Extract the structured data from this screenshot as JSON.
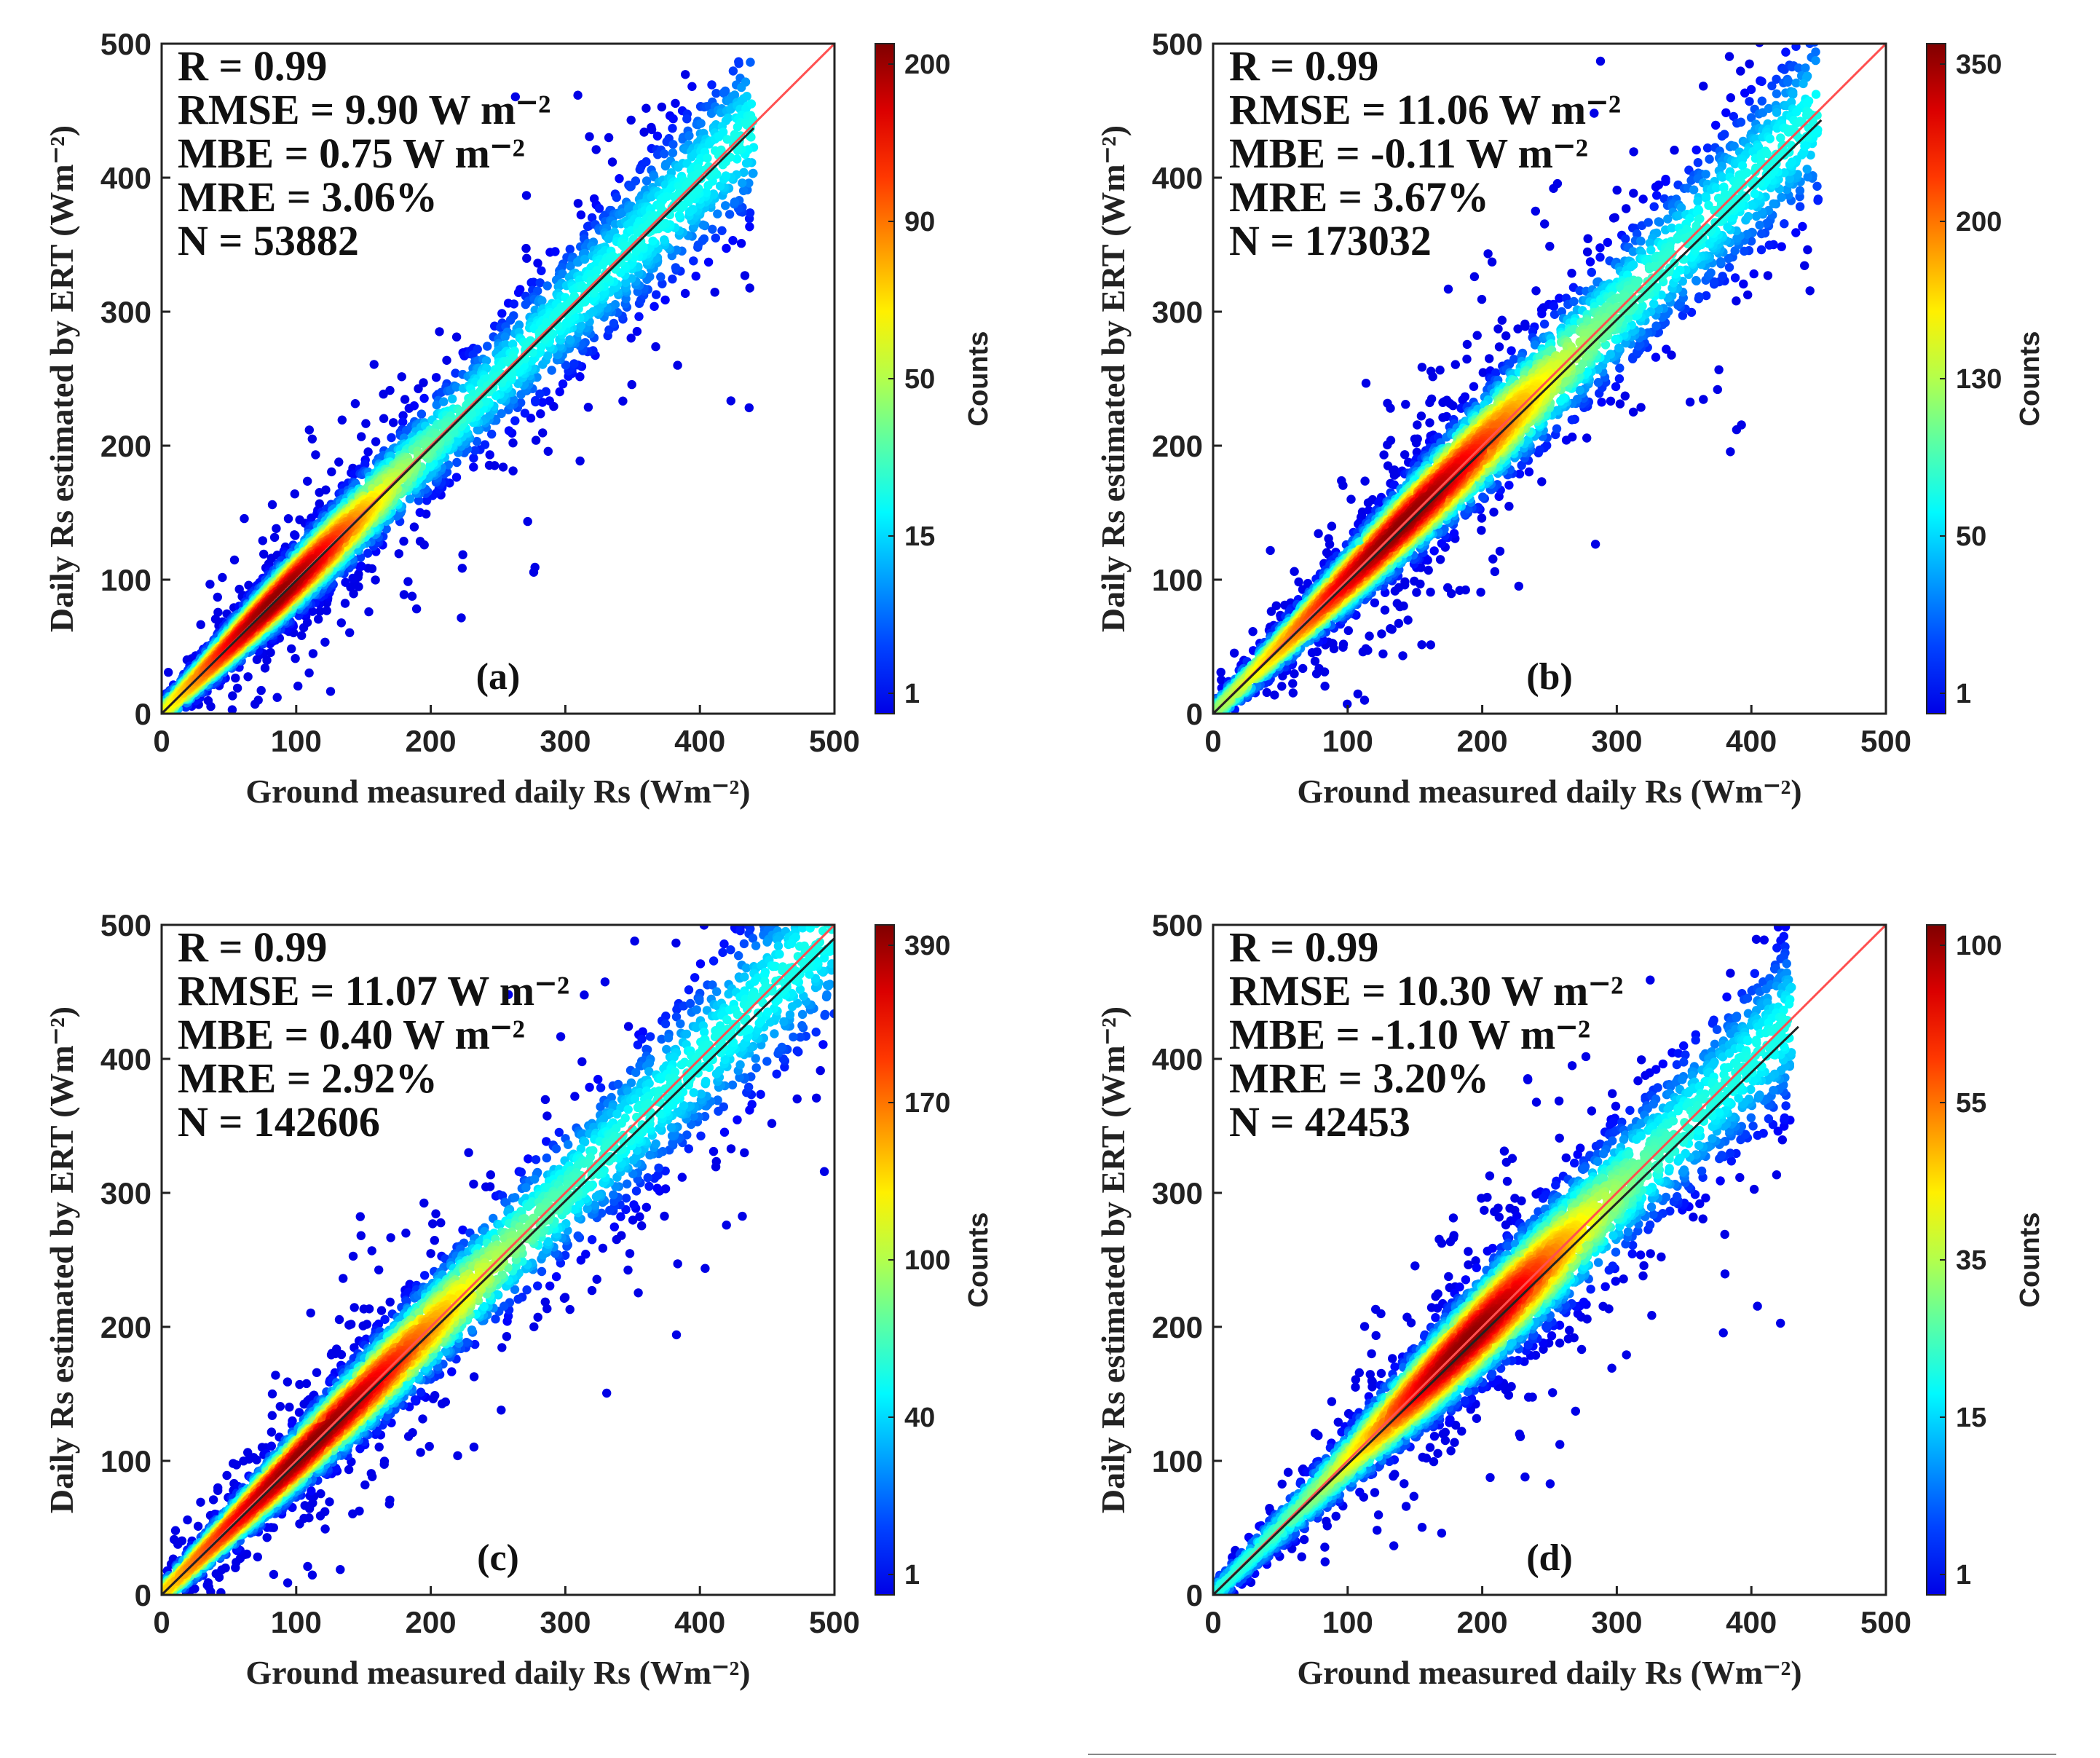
{
  "chart_data": [
    {
      "type": "scatter",
      "panel_label": "(a)",
      "xlabel": "Ground measured daily Rs (Wm⁻²)",
      "ylabel": "Daily Rs estimated by ERT (Wm⁻²)",
      "xlim": [
        0,
        500
      ],
      "ylim": [
        0,
        500
      ],
      "xticks": [
        0,
        100,
        200,
        300,
        400,
        500
      ],
      "yticks": [
        0,
        100,
        200,
        300,
        400,
        500
      ],
      "stats": [
        "R = 0.99",
        "RMSE = 9.90  W m⁻²",
        "MBE = 0.75   W m⁻²",
        "MRE = 3.06%",
        "N = 53882"
      ],
      "colorbar": {
        "label": "Counts",
        "ticks": [
          "1",
          "15",
          "50",
          "90",
          "200"
        ]
      },
      "density": {
        "center": 85,
        "spread": 80,
        "extent": [
          0,
          440
        ],
        "outliers": 0.06
      },
      "lines": [
        {
          "name": "1:1 line",
          "color": "#ff5050",
          "x": [
            0,
            500
          ],
          "y": [
            0,
            500
          ]
        },
        {
          "name": "fit line",
          "color": "#222222",
          "x": [
            0,
            440
          ],
          "y": [
            0,
            437
          ]
        }
      ]
    },
    {
      "type": "scatter",
      "panel_label": "(b)",
      "xlabel": "Ground measured daily Rs (Wm⁻²)",
      "ylabel": "Daily Rs estimated by ERT (Wm⁻²)",
      "xlim": [
        0,
        500
      ],
      "ylim": [
        0,
        500
      ],
      "xticks": [
        0,
        100,
        200,
        300,
        400,
        500
      ],
      "yticks": [
        0,
        100,
        200,
        300,
        400,
        500
      ],
      "stats": [
        "R = 0.99",
        "RMSE = 11.06  W m⁻²",
        "MBE = -0.11   W m⁻²",
        "MRE = 3.67%",
        "N = 173032"
      ],
      "colorbar": {
        "label": "Counts",
        "ticks": [
          "1",
          "50",
          "130",
          "200",
          "350"
        ]
      },
      "density": {
        "center": 140,
        "spread": 110,
        "extent": [
          0,
          450
        ],
        "outliers": 0.08
      },
      "lines": [
        {
          "name": "1:1 line",
          "color": "#ff5050",
          "x": [
            0,
            500
          ],
          "y": [
            0,
            500
          ]
        },
        {
          "name": "fit line",
          "color": "#222222",
          "x": [
            0,
            452
          ],
          "y": [
            0,
            443
          ]
        }
      ]
    },
    {
      "type": "scatter",
      "panel_label": "(c)",
      "xlabel": "Ground measured daily Rs (Wm⁻²)",
      "ylabel": "Daily Rs estimated by ERT (Wm⁻²)",
      "xlim": [
        0,
        500
      ],
      "ylim": [
        0,
        500
      ],
      "xticks": [
        0,
        100,
        200,
        300,
        400,
        500
      ],
      "yticks": [
        0,
        100,
        200,
        300,
        400,
        500
      ],
      "stats": [
        "R = 0.99",
        "RMSE = 11.07   W m⁻²",
        "MBE = 0.40      W m⁻²",
        "MRE = 2.92%",
        "N = 142606"
      ],
      "colorbar": {
        "label": "Counts",
        "ticks": [
          "1",
          "40",
          "100",
          "170",
          "390"
        ]
      },
      "density": {
        "center": 110,
        "spread": 120,
        "extent": [
          0,
          500
        ],
        "outliers": 0.08
      },
      "lines": [
        {
          "name": "1:1 line",
          "color": "#ff5050",
          "x": [
            0,
            500
          ],
          "y": [
            0,
            500
          ]
        },
        {
          "name": "fit line",
          "color": "#222222",
          "x": [
            0,
            500
          ],
          "y": [
            0,
            490
          ]
        }
      ]
    },
    {
      "type": "scatter",
      "panel_label": "(d)",
      "xlabel": "Ground measured daily Rs (Wm⁻²)",
      "ylabel": "Daily Rs estimated by ERT (Wm⁻²)",
      "xlim": [
        0,
        500
      ],
      "ylim": [
        0,
        500
      ],
      "xticks": [
        0,
        100,
        200,
        300,
        400,
        500
      ],
      "yticks": [
        0,
        100,
        200,
        300,
        400,
        500
      ],
      "stats": [
        "R = 0.99",
        "RMSE = 10.30  W m⁻²",
        "MBE = -1.10   W m⁻²",
        "MRE = 3.20%",
        "N = 42453"
      ],
      "colorbar": {
        "label": "Counts",
        "ticks": [
          "1",
          "15",
          "35",
          "55",
          "100"
        ]
      },
      "density": {
        "center": 190,
        "spread": 90,
        "extent": [
          0,
          430
        ],
        "outliers": 0.06
      },
      "lines": [
        {
          "name": "1:1 line",
          "color": "#ff5050",
          "x": [
            0,
            500
          ],
          "y": [
            0,
            500
          ]
        },
        {
          "name": "fit line",
          "color": "#222222",
          "x": [
            0,
            435
          ],
          "y": [
            0,
            424
          ]
        }
      ]
    }
  ]
}
